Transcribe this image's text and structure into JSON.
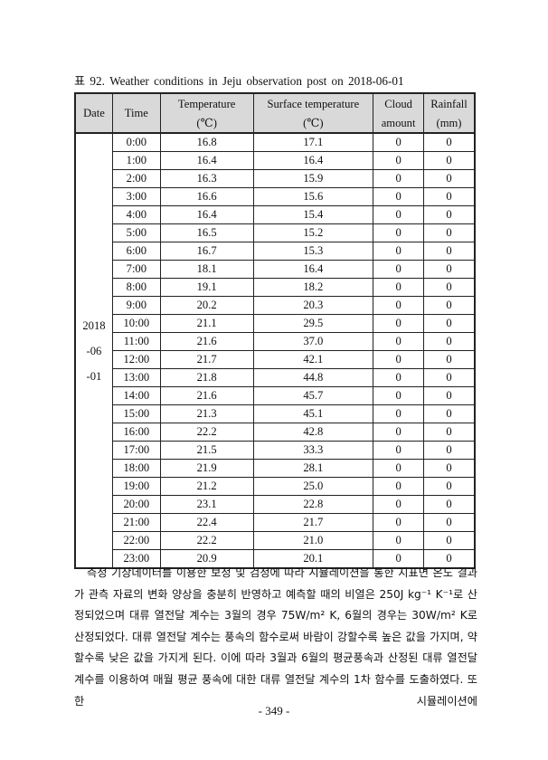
{
  "caption": "표 92. Weather conditions in Jeju observation post on 2018-06-01",
  "table": {
    "headers": {
      "date": "Date",
      "time": "Time",
      "temperature": "Temperature",
      "temperature_unit": "(℃)",
      "surface_temperature": "Surface temperature",
      "surface_temperature_unit": "(℃)",
      "cloud": "Cloud",
      "cloud_2": "amount",
      "rainfall": "Rainfall",
      "rainfall_unit": "(mm)"
    },
    "date_lines": [
      "2018",
      "-06",
      "-01"
    ],
    "rows": [
      {
        "time": "0:00",
        "temp": "16.8",
        "surface": "17.1",
        "cloud": "0",
        "rain": "0"
      },
      {
        "time": "1:00",
        "temp": "16.4",
        "surface": "16.4",
        "cloud": "0",
        "rain": "0"
      },
      {
        "time": "2:00",
        "temp": "16.3",
        "surface": "15.9",
        "cloud": "0",
        "rain": "0"
      },
      {
        "time": "3:00",
        "temp": "16.6",
        "surface": "15.6",
        "cloud": "0",
        "rain": "0"
      },
      {
        "time": "4:00",
        "temp": "16.4",
        "surface": "15.4",
        "cloud": "0",
        "rain": "0"
      },
      {
        "time": "5:00",
        "temp": "16.5",
        "surface": "15.2",
        "cloud": "0",
        "rain": "0"
      },
      {
        "time": "6:00",
        "temp": "16.7",
        "surface": "15.3",
        "cloud": "0",
        "rain": "0"
      },
      {
        "time": "7:00",
        "temp": "18.1",
        "surface": "16.4",
        "cloud": "0",
        "rain": "0"
      },
      {
        "time": "8:00",
        "temp": "19.1",
        "surface": "18.2",
        "cloud": "0",
        "rain": "0"
      },
      {
        "time": "9:00",
        "temp": "20.2",
        "surface": "20.3",
        "cloud": "0",
        "rain": "0"
      },
      {
        "time": "10:00",
        "temp": "21.1",
        "surface": "29.5",
        "cloud": "0",
        "rain": "0"
      },
      {
        "time": "11:00",
        "temp": "21.6",
        "surface": "37.0",
        "cloud": "0",
        "rain": "0"
      },
      {
        "time": "12:00",
        "temp": "21.7",
        "surface": "42.1",
        "cloud": "0",
        "rain": "0"
      },
      {
        "time": "13:00",
        "temp": "21.8",
        "surface": "44.8",
        "cloud": "0",
        "rain": "0"
      },
      {
        "time": "14:00",
        "temp": "21.6",
        "surface": "45.7",
        "cloud": "0",
        "rain": "0"
      },
      {
        "time": "15:00",
        "temp": "21.3",
        "surface": "45.1",
        "cloud": "0",
        "rain": "0"
      },
      {
        "time": "16:00",
        "temp": "22.2",
        "surface": "42.8",
        "cloud": "0",
        "rain": "0"
      },
      {
        "time": "17:00",
        "temp": "21.5",
        "surface": "33.3",
        "cloud": "0",
        "rain": "0"
      },
      {
        "time": "18:00",
        "temp": "21.9",
        "surface": "28.1",
        "cloud": "0",
        "rain": "0"
      },
      {
        "time": "19:00",
        "temp": "21.2",
        "surface": "25.0",
        "cloud": "0",
        "rain": "0"
      },
      {
        "time": "20:00",
        "temp": "23.1",
        "surface": "22.8",
        "cloud": "0",
        "rain": "0"
      },
      {
        "time": "21:00",
        "temp": "22.4",
        "surface": "21.7",
        "cloud": "0",
        "rain": "0"
      },
      {
        "time": "22:00",
        "temp": "22.2",
        "surface": "21.0",
        "cloud": "0",
        "rain": "0"
      },
      {
        "time": "23:00",
        "temp": "20.9",
        "surface": "20.1",
        "cloud": "0",
        "rain": "0"
      }
    ]
  },
  "paragraph": "측정 기상데이터를 이용한 보정 및 검정에 따라 시뮬레이션을 통한 지표면 온도 결과가 관측 자료의 변화 양상을 충분히 반영하고 예측할 때의 비열은 250J kg⁻¹ K⁻¹로 산정되었으며 대류 열전달 계수는 3월의 경우 75W/m² K, 6월의 경우는 30W/m² K로 산정되었다. 대류 열전달 계수는 풍속의 함수로써 바람이 강할수록 높은 값을 가지며, 약할수록 낮은 값을 가지게 된다. 이에 따라 3월과 6월의 평균풍속과 산정된 대류 열전달 계수를 이용하여 매월 평균 풍속에 대한 대류 열전달 계수의 1차 함수를 도출하였다. 또한 시뮬레이션에",
  "page_number": "- 349 -"
}
